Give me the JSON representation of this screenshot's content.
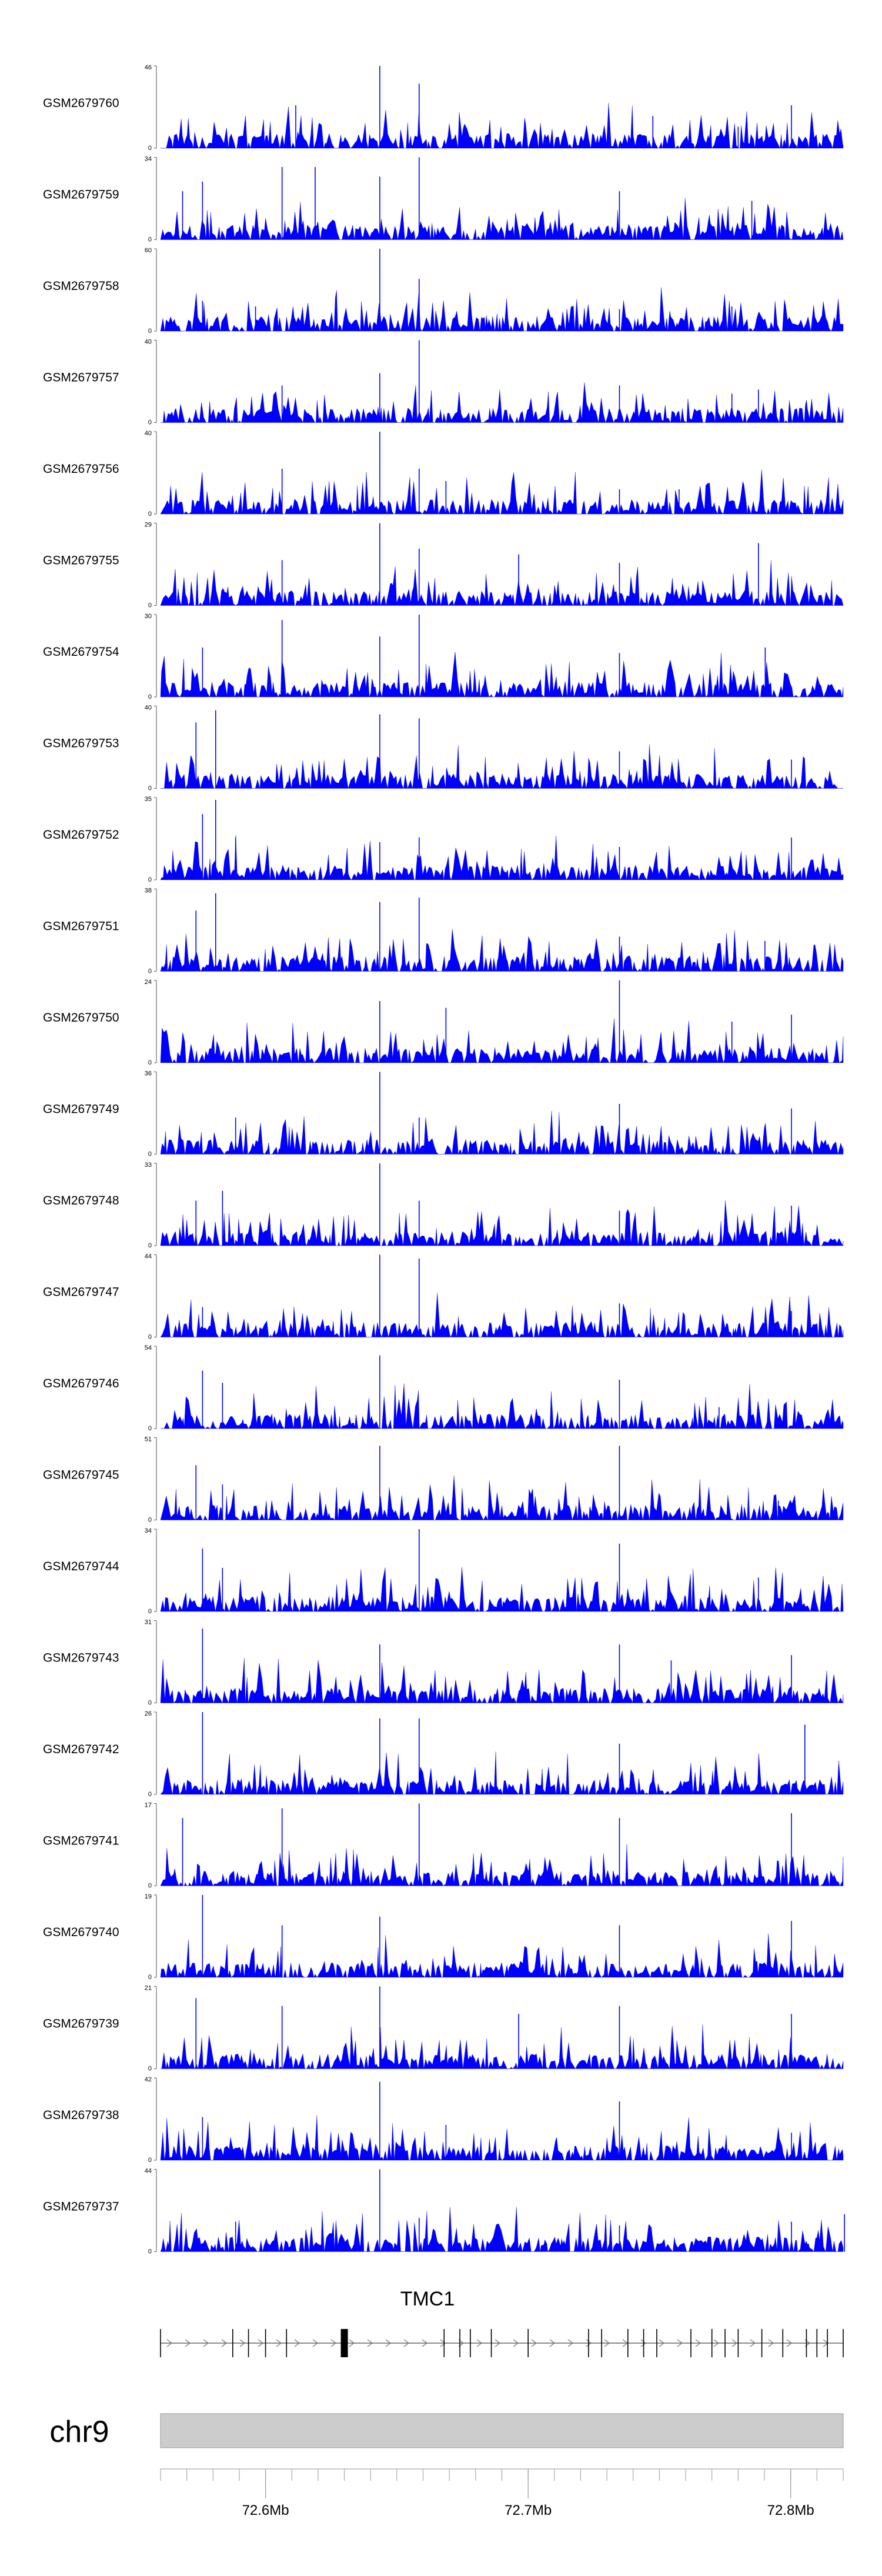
{
  "chart_data": {
    "type": "area",
    "title": "",
    "track_type": "coverage",
    "series_color": "#0000ff",
    "gene_color": "#000000",
    "chrom_bar_color": "#cccccc",
    "grid": false,
    "chromosome": "chr9",
    "gene": "TMC1",
    "xlim_mb": [
      72.56,
      72.82
    ],
    "x_ticks": [
      72.6,
      72.7,
      72.8
    ],
    "x_tick_labels": [
      "72.6Mb",
      "72.7Mb",
      "72.8Mb"
    ],
    "tracks": [
      {
        "name": "GSM2679760",
        "ymin": 0,
        "ymax": 46,
        "peaks": [
          {
            "x": 72.6115,
            "y": 24
          },
          {
            "x": 72.6435,
            "y": 46
          },
          {
            "x": 72.6585,
            "y": 36
          },
          {
            "x": 72.7475,
            "y": 18
          },
          {
            "x": 72.78,
            "y": 12
          },
          {
            "x": 72.8003,
            "y": 24
          }
        ]
      },
      {
        "name": "GSM2679759",
        "ymin": 0,
        "ymax": 34,
        "peaks": [
          {
            "x": 72.5684,
            "y": 20
          },
          {
            "x": 72.576,
            "y": 24
          },
          {
            "x": 72.6063,
            "y": 30
          },
          {
            "x": 72.6189,
            "y": 30
          },
          {
            "x": 72.6435,
            "y": 26
          },
          {
            "x": 72.6585,
            "y": 34
          },
          {
            "x": 72.7348,
            "y": 20
          },
          {
            "x": 72.7852,
            "y": 16
          }
        ]
      },
      {
        "name": "GSM2679758",
        "ymin": 0,
        "ymax": 60,
        "peaks": [
          {
            "x": 72.576,
            "y": 22
          },
          {
            "x": 72.5962,
            "y": 18
          },
          {
            "x": 72.6435,
            "y": 60
          },
          {
            "x": 72.6585,
            "y": 38
          },
          {
            "x": 72.7348,
            "y": 16
          },
          {
            "x": 72.7776,
            "y": 18
          }
        ]
      },
      {
        "name": "GSM2679757",
        "ymin": 0,
        "ymax": 40,
        "peaks": [
          {
            "x": 72.6063,
            "y": 18
          },
          {
            "x": 72.6435,
            "y": 24
          },
          {
            "x": 72.6585,
            "y": 40
          },
          {
            "x": 72.7348,
            "y": 18
          },
          {
            "x": 72.7776,
            "y": 14
          },
          {
            "x": 72.7877,
            "y": 16
          }
        ]
      },
      {
        "name": "GSM2679756",
        "ymin": 0,
        "ymax": 40,
        "peaks": [
          {
            "x": 72.6063,
            "y": 22
          },
          {
            "x": 72.6435,
            "y": 40
          },
          {
            "x": 72.6585,
            "y": 22
          },
          {
            "x": 72.6687,
            "y": 16
          },
          {
            "x": 72.7348,
            "y": 12
          },
          {
            "x": 72.7575,
            "y": 12
          }
        ]
      },
      {
        "name": "GSM2679755",
        "ymin": 0,
        "ymax": 29,
        "peaks": [
          {
            "x": 72.6063,
            "y": 16
          },
          {
            "x": 72.6435,
            "y": 29
          },
          {
            "x": 72.6585,
            "y": 20
          },
          {
            "x": 72.6964,
            "y": 18
          },
          {
            "x": 72.7348,
            "y": 15
          },
          {
            "x": 72.7877,
            "y": 22
          }
        ]
      },
      {
        "name": "GSM2679754",
        "ymin": 0,
        "ymax": 30,
        "peaks": [
          {
            "x": 72.576,
            "y": 18
          },
          {
            "x": 72.6063,
            "y": 28
          },
          {
            "x": 72.6435,
            "y": 22
          },
          {
            "x": 72.6585,
            "y": 30
          },
          {
            "x": 72.7348,
            "y": 16
          },
          {
            "x": 72.7903,
            "y": 18
          }
        ]
      },
      {
        "name": "GSM2679753",
        "ymin": 0,
        "ymax": 40,
        "peaks": [
          {
            "x": 72.5735,
            "y": 32
          },
          {
            "x": 72.581,
            "y": 38
          },
          {
            "x": 72.6435,
            "y": 36
          },
          {
            "x": 72.6585,
            "y": 34
          },
          {
            "x": 72.7348,
            "y": 18
          },
          {
            "x": 72.8003,
            "y": 14
          }
        ]
      },
      {
        "name": "GSM2679752",
        "ymin": 0,
        "ymax": 35,
        "peaks": [
          {
            "x": 72.576,
            "y": 28
          },
          {
            "x": 72.581,
            "y": 34
          },
          {
            "x": 72.5886,
            "y": 18
          },
          {
            "x": 72.6435,
            "y": 16
          },
          {
            "x": 72.6585,
            "y": 18
          },
          {
            "x": 72.7348,
            "y": 14
          },
          {
            "x": 72.8003,
            "y": 18
          }
        ]
      },
      {
        "name": "GSM2679751",
        "ymin": 0,
        "ymax": 38,
        "peaks": [
          {
            "x": 72.5735,
            "y": 28
          },
          {
            "x": 72.581,
            "y": 36
          },
          {
            "x": 72.6435,
            "y": 32
          },
          {
            "x": 72.6585,
            "y": 34
          },
          {
            "x": 72.7348,
            "y": 16
          },
          {
            "x": 72.7902,
            "y": 14
          }
        ]
      },
      {
        "name": "GSM2679750",
        "ymin": 0,
        "ymax": 24,
        "peaks": [
          {
            "x": 72.6435,
            "y": 18
          },
          {
            "x": 72.6687,
            "y": 16
          },
          {
            "x": 72.7348,
            "y": 24
          },
          {
            "x": 72.7776,
            "y": 12
          },
          {
            "x": 72.8003,
            "y": 14
          }
        ]
      },
      {
        "name": "GSM2679749",
        "ymin": 0,
        "ymax": 36,
        "peaks": [
          {
            "x": 72.5886,
            "y": 16
          },
          {
            "x": 72.6435,
            "y": 36
          },
          {
            "x": 72.6585,
            "y": 16
          },
          {
            "x": 72.7348,
            "y": 22
          },
          {
            "x": 72.8003,
            "y": 20
          }
        ]
      },
      {
        "name": "GSM2679748",
        "ymin": 0,
        "ymax": 33,
        "peaks": [
          {
            "x": 72.5735,
            "y": 18
          },
          {
            "x": 72.5836,
            "y": 22
          },
          {
            "x": 72.6435,
            "y": 33
          },
          {
            "x": 72.6585,
            "y": 18
          },
          {
            "x": 72.7348,
            "y": 14
          },
          {
            "x": 72.8003,
            "y": 16
          }
        ]
      },
      {
        "name": "GSM2679747",
        "ymin": 0,
        "ymax": 44,
        "peaks": [
          {
            "x": 72.576,
            "y": 16
          },
          {
            "x": 72.6435,
            "y": 44
          },
          {
            "x": 72.6585,
            "y": 42
          },
          {
            "x": 72.7348,
            "y": 18
          },
          {
            "x": 72.8003,
            "y": 14
          }
        ]
      },
      {
        "name": "GSM2679746",
        "ymin": 0,
        "ymax": 54,
        "peaks": [
          {
            "x": 72.576,
            "y": 38
          },
          {
            "x": 72.5836,
            "y": 30
          },
          {
            "x": 72.6435,
            "y": 48
          },
          {
            "x": 72.7348,
            "y": 32
          },
          {
            "x": 72.7727,
            "y": 14
          }
        ]
      },
      {
        "name": "GSM2679745",
        "ymin": 0,
        "ymax": 51,
        "peaks": [
          {
            "x": 72.5735,
            "y": 34
          },
          {
            "x": 72.5836,
            "y": 22
          },
          {
            "x": 72.6435,
            "y": 46
          },
          {
            "x": 72.7348,
            "y": 46
          },
          {
            "x": 72.7953,
            "y": 12
          }
        ]
      },
      {
        "name": "GSM2679744",
        "ymin": 0,
        "ymax": 34,
        "peaks": [
          {
            "x": 72.576,
            "y": 26
          },
          {
            "x": 72.5836,
            "y": 18
          },
          {
            "x": 72.6585,
            "y": 34
          },
          {
            "x": 72.7348,
            "y": 28
          },
          {
            "x": 72.7877,
            "y": 14
          }
        ]
      },
      {
        "name": "GSM2679743",
        "ymin": 0,
        "ymax": 31,
        "peaks": [
          {
            "x": 72.576,
            "y": 28
          },
          {
            "x": 72.6435,
            "y": 22
          },
          {
            "x": 72.7348,
            "y": 22
          },
          {
            "x": 72.7545,
            "y": 16
          },
          {
            "x": 72.8003,
            "y": 18
          }
        ]
      },
      {
        "name": "GSM2679742",
        "ymin": 0,
        "ymax": 26,
        "peaks": [
          {
            "x": 72.576,
            "y": 26
          },
          {
            "x": 72.6435,
            "y": 24
          },
          {
            "x": 72.6585,
            "y": 24
          },
          {
            "x": 72.7348,
            "y": 16
          },
          {
            "x": 72.8054,
            "y": 22
          }
        ]
      },
      {
        "name": "GSM2679741",
        "ymin": 0,
        "ymax": 17,
        "peaks": [
          {
            "x": 72.5684,
            "y": 14
          },
          {
            "x": 72.6063,
            "y": 16
          },
          {
            "x": 72.6585,
            "y": 17
          },
          {
            "x": 72.7348,
            "y": 14
          },
          {
            "x": 72.8003,
            "y": 15
          }
        ]
      },
      {
        "name": "GSM2679740",
        "ymin": 0,
        "ymax": 19,
        "peaks": [
          {
            "x": 72.576,
            "y": 19
          },
          {
            "x": 72.6063,
            "y": 12
          },
          {
            "x": 72.6435,
            "y": 14
          },
          {
            "x": 72.7348,
            "y": 12
          },
          {
            "x": 72.8003,
            "y": 13
          }
        ]
      },
      {
        "name": "GSM2679739",
        "ymin": 0,
        "ymax": 21,
        "peaks": [
          {
            "x": 72.5735,
            "y": 18
          },
          {
            "x": 72.6063,
            "y": 16
          },
          {
            "x": 72.6435,
            "y": 21
          },
          {
            "x": 72.6964,
            "y": 14
          },
          {
            "x": 72.7348,
            "y": 16
          },
          {
            "x": 72.8003,
            "y": 14
          }
        ]
      },
      {
        "name": "GSM2679738",
        "ymin": 0,
        "ymax": 42,
        "peaks": [
          {
            "x": 72.576,
            "y": 22
          },
          {
            "x": 72.6435,
            "y": 40
          },
          {
            "x": 72.6687,
            "y": 18
          },
          {
            "x": 72.7348,
            "y": 30
          },
          {
            "x": 72.8003,
            "y": 14
          }
        ]
      },
      {
        "name": "GSM2679737",
        "ymin": 0,
        "ymax": 44,
        "peaks": [
          {
            "x": 72.5886,
            "y": 16
          },
          {
            "x": 72.6435,
            "y": 44
          },
          {
            "x": 72.6585,
            "y": 18
          },
          {
            "x": 72.7348,
            "y": 14
          },
          {
            "x": 72.8003,
            "y": 16
          },
          {
            "x": 72.8205,
            "y": 20
          }
        ]
      }
    ],
    "gene_model": {
      "strand": "+",
      "start": 72.56,
      "end": 72.82,
      "exons": [
        72.56,
        72.5875,
        72.5935,
        72.6,
        72.608,
        72.629,
        72.631,
        72.668,
        72.674,
        72.678,
        72.686,
        72.7,
        72.723,
        72.728,
        72.738,
        72.744,
        72.749,
        72.762,
        72.77,
        72.775,
        72.78,
        72.789,
        72.797,
        72.806,
        72.81,
        72.814,
        72.82
      ]
    }
  }
}
